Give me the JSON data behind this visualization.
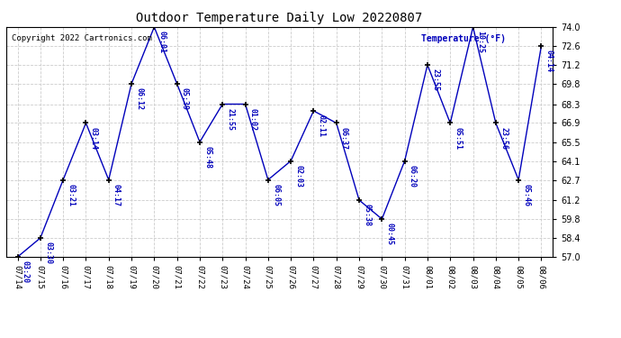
{
  "title": "Outdoor Temperature Daily Low 20220807",
  "copyright_text": "Copyright 2022 Cartronics.com",
  "ylabel": "Temperature (°F)",
  "xlabels": [
    "07/14",
    "07/15",
    "07/16",
    "07/17",
    "07/18",
    "07/19",
    "07/20",
    "07/21",
    "07/22",
    "07/23",
    "07/24",
    "07/25",
    "07/26",
    "07/27",
    "07/28",
    "07/29",
    "07/30",
    "07/31",
    "08/01",
    "08/02",
    "08/03",
    "08/04",
    "08/05",
    "08/06"
  ],
  "x_indices": [
    0,
    1,
    2,
    3,
    4,
    5,
    6,
    7,
    8,
    9,
    10,
    11,
    12,
    13,
    14,
    15,
    16,
    17,
    18,
    19,
    20,
    21,
    22,
    23
  ],
  "y_values": [
    57.0,
    58.4,
    62.7,
    66.9,
    62.7,
    69.8,
    74.0,
    69.8,
    65.5,
    68.3,
    68.3,
    62.7,
    64.1,
    67.8,
    66.9,
    61.2,
    59.8,
    64.1,
    71.2,
    66.9,
    74.0,
    66.9,
    62.7,
    72.6
  ],
  "point_labels": [
    "03:20",
    "03:30",
    "03:21",
    "03:14",
    "04:17",
    "06:12",
    "06:01",
    "05:39",
    "05:48",
    "21:55",
    "01:02",
    "06:05",
    "02:03",
    "02:11",
    "06:37",
    "05:38",
    "00:45",
    "06:20",
    "23:55",
    "05:51",
    "10:25",
    "23:56",
    "05:46",
    "04:14"
  ],
  "line_color": "#0000bb",
  "marker_color": "#000000",
  "grid_color": "#cccccc",
  "background_color": "#ffffff",
  "border_color": "#000000",
  "ylim": [
    57.0,
    74.0
  ],
  "yticks": [
    57.0,
    58.4,
    59.8,
    61.2,
    62.7,
    64.1,
    65.5,
    66.9,
    68.3,
    69.8,
    71.2,
    72.6,
    74.0
  ]
}
